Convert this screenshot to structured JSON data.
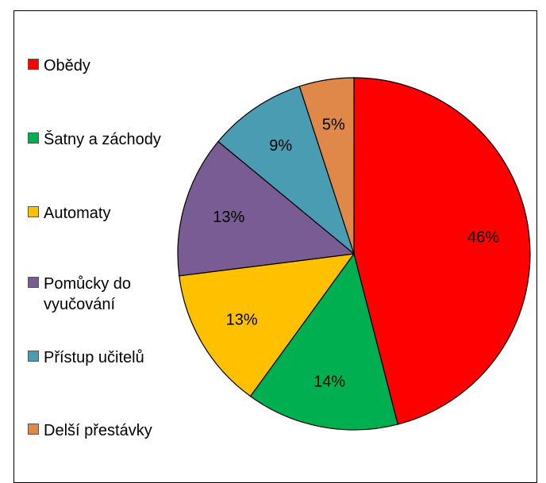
{
  "chart_data": {
    "type": "pie",
    "title": "",
    "legend_position": "left",
    "slices": [
      {
        "label": "Obědy",
        "value": 46,
        "display": "46%",
        "color": "#ff0000"
      },
      {
        "label": "Šatny a záchody",
        "value": 14,
        "display": "14%",
        "color": "#00b050"
      },
      {
        "label": "Automaty",
        "value": 13,
        "display": "13%",
        "color": "#ffc000"
      },
      {
        "label": "Pomůcky do vyučování",
        "value": 13,
        "display": "13%",
        "color": "#7a5c94"
      },
      {
        "label": "Přístup učitelů",
        "value": 9,
        "display": "9%",
        "color": "#4a9cb3"
      },
      {
        "label": "Delší přestávky",
        "value": 5,
        "display": "5%",
        "color": "#e0884a"
      }
    ]
  }
}
